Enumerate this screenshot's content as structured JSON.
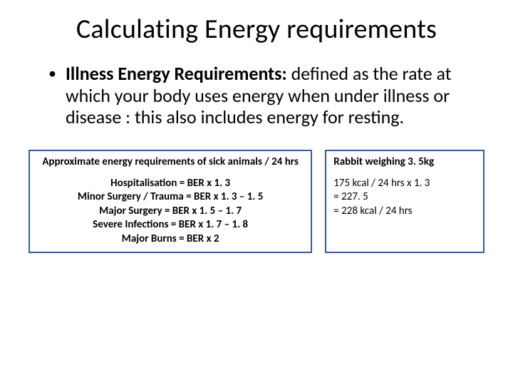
{
  "title": "Calculating Energy requirements",
  "bullet": {
    "lead": "Illness Energy Requirements:",
    "rest": " defined as the rate at which your body uses energy when under illness or disease : this also includes energy for resting."
  },
  "left_box": {
    "header": "Approximate energy requirements of sick animals / 24 hrs",
    "lines": [
      "Hospitalisation =  BER x 1. 3",
      "Minor Surgery / Trauma = BER x 1. 3 – 1. 5",
      "Major Surgery = BER x 1. 5 – 1. 7",
      "Severe Infections = BER x 1. 7 – 1. 8",
      "Major Burns = BER x 2"
    ]
  },
  "right_box": {
    "header": "Rabbit weighing 3. 5kg",
    "lines": [
      "175 kcal / 24 hrs x 1. 3",
      "= 227. 5",
      "= 228 kcal / 24 hrs"
    ]
  },
  "style": {
    "border_color": "#395b8f",
    "background": "#ffffff",
    "text_color": "#000000",
    "title_fontsize": 38,
    "body_fontsize": 26,
    "box_fontsize": 15
  }
}
